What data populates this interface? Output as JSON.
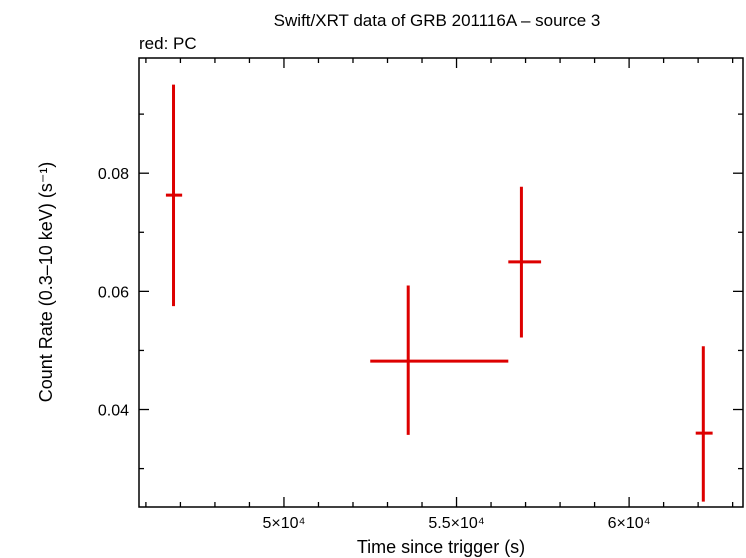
{
  "chart_data": {
    "type": "scatter",
    "title": "Swift/XRT data of GRB 201116A – source 3",
    "subtitle": "red: PC",
    "xlabel": "Time since trigger (s)",
    "ylabel": "Count Rate (0.3–10 keV) (s⁻¹)",
    "xlim": [
      45800,
      63300
    ],
    "ylim": [
      0.0235,
      0.0995
    ],
    "x_ticks": [
      {
        "value": 50000,
        "label": "5×10⁴"
      },
      {
        "value": 55000,
        "label": "5.5×10⁴"
      },
      {
        "value": 60000,
        "label": "6×10⁴"
      }
    ],
    "y_ticks": [
      {
        "value": 0.04,
        "label": "0.04"
      },
      {
        "value": 0.06,
        "label": "0.06"
      },
      {
        "value": 0.08,
        "label": "0.08"
      }
    ],
    "x_minor_step": 1000,
    "y_minor_step": 0.01,
    "series": [
      {
        "color": "#dd0000",
        "points": [
          {
            "x": 46800,
            "x_lo": 46580,
            "x_hi": 47050,
            "y": 0.0763,
            "y_lo": 0.0575,
            "y_hi": 0.095
          },
          {
            "x": 53600,
            "x_lo": 52500,
            "x_hi": 56500,
            "y": 0.0482,
            "y_lo": 0.0357,
            "y_hi": 0.061
          },
          {
            "x": 56880,
            "x_lo": 56500,
            "x_hi": 57450,
            "y": 0.065,
            "y_lo": 0.0522,
            "y_hi": 0.0777
          },
          {
            "x": 62150,
            "x_lo": 61930,
            "x_hi": 62420,
            "y": 0.036,
            "y_lo": 0.0244,
            "y_hi": 0.0507
          }
        ]
      }
    ]
  }
}
